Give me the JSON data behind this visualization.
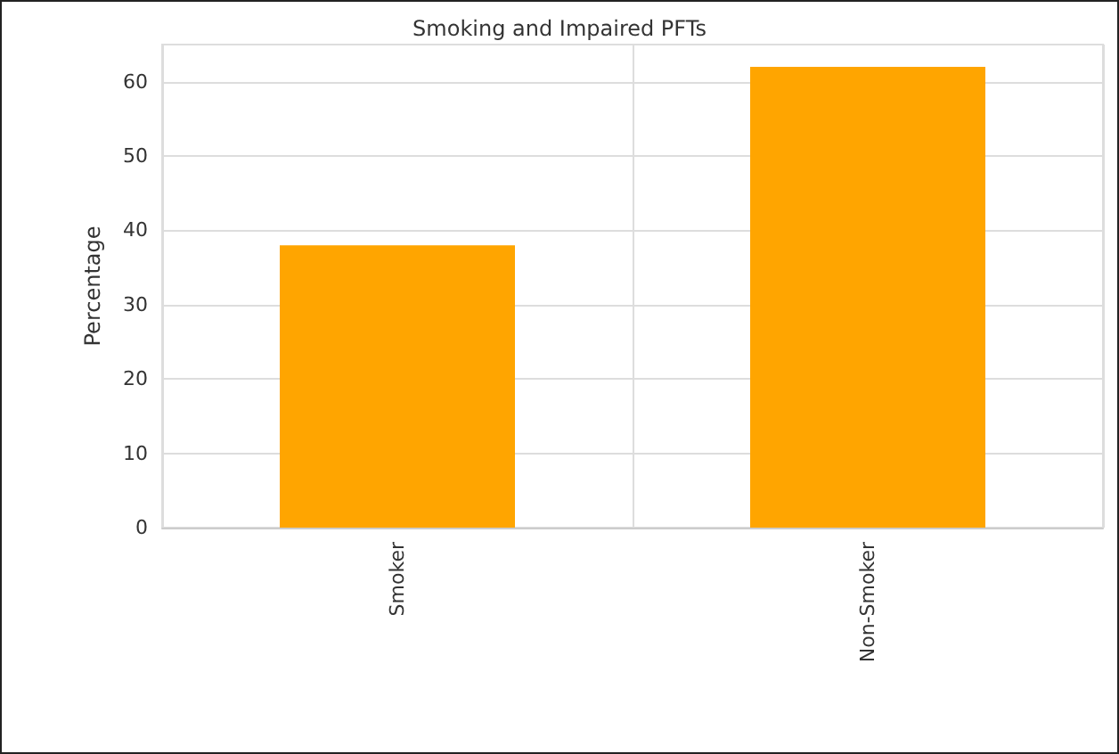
{
  "chart_data": {
    "type": "bar",
    "title": "Smoking and Impaired PFTs",
    "ylabel": "Percentage",
    "categories": [
      "Smoker",
      "Non-Smoker"
    ],
    "values": [
      38,
      62
    ],
    "color": "#ffa500",
    "ylim": [
      0,
      65
    ],
    "yticks": [
      0,
      10,
      20,
      30,
      40,
      50,
      60
    ],
    "grid": true
  }
}
